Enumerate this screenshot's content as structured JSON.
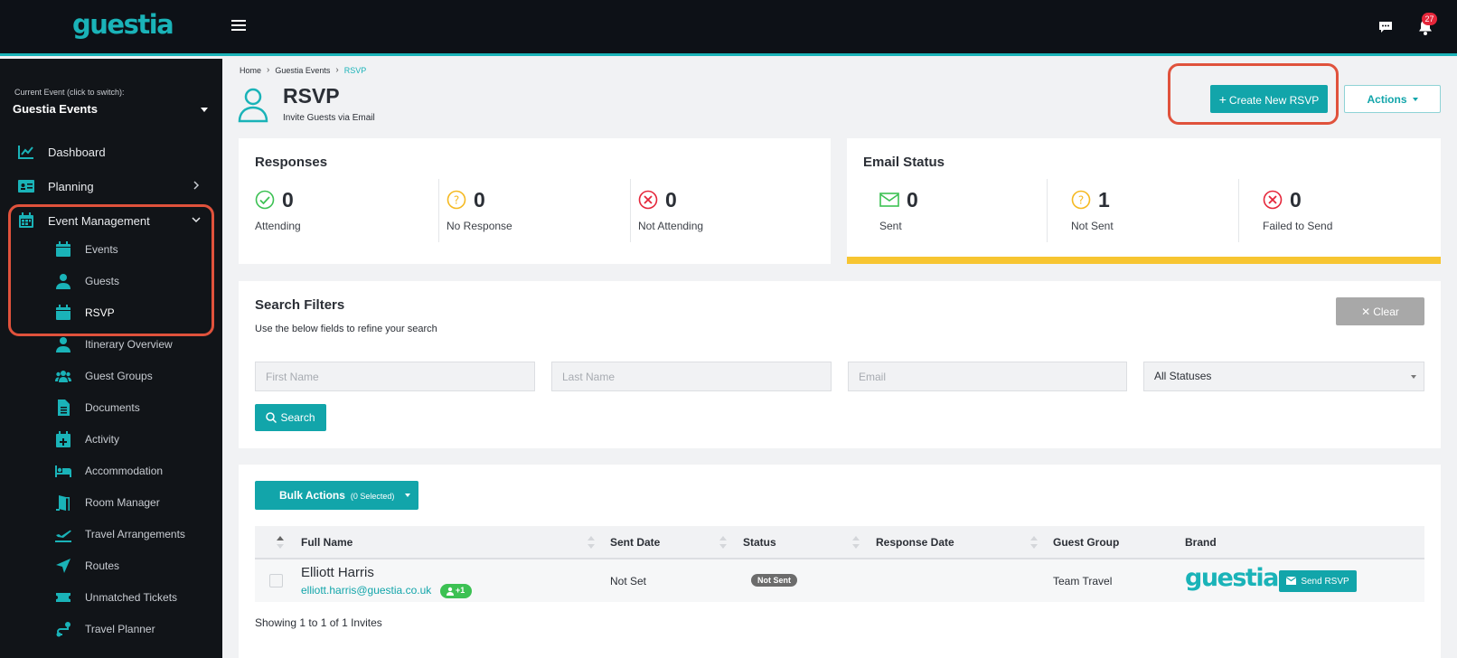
{
  "app": {
    "logo": "guestia",
    "notifications_count": "27"
  },
  "sidebar": {
    "current_event_label": "Current Event (click to switch):",
    "current_event": "Guestia Events",
    "items": [
      {
        "label": "Dashboard",
        "icon": "chart-line-icon"
      },
      {
        "label": "Planning",
        "icon": "id-card-icon"
      },
      {
        "label": "Event Management",
        "icon": "calendar-icon"
      }
    ],
    "subitems": [
      {
        "label": "Events",
        "icon": "calendar-icon"
      },
      {
        "label": "Guests",
        "icon": "user-icon"
      },
      {
        "label": "RSVP",
        "icon": "calendar-icon"
      },
      {
        "label": "Itinerary Overview",
        "icon": "user-icon"
      },
      {
        "label": "Guest Groups",
        "icon": "users-icon"
      },
      {
        "label": "Documents",
        "icon": "file-icon"
      },
      {
        "label": "Activity",
        "icon": "calendar-plus-icon"
      },
      {
        "label": "Accommodation",
        "icon": "bed-icon"
      },
      {
        "label": "Room Manager",
        "icon": "door-icon"
      },
      {
        "label": "Travel Arrangements",
        "icon": "plane-departure-icon"
      },
      {
        "label": "Routes",
        "icon": "location-arrow-icon"
      },
      {
        "label": "Unmatched Tickets",
        "icon": "ticket-icon"
      },
      {
        "label": "Travel Planner",
        "icon": "route-icon"
      }
    ]
  },
  "breadcrumb": [
    "Home",
    "Guestia Events",
    "RSVP"
  ],
  "page": {
    "title": "RSVP",
    "subtitle": "Invite Guests via Email",
    "create_button": "Create New RSVP",
    "actions_button": "Actions"
  },
  "responses": {
    "title": "Responses",
    "stats": [
      {
        "value": "0",
        "label": "Attending",
        "color": "#3cc153"
      },
      {
        "value": "0",
        "label": "No Response",
        "color": "#f5b921"
      },
      {
        "value": "0",
        "label": "Not Attending",
        "color": "#e5263a"
      }
    ]
  },
  "email_status": {
    "title": "Email Status",
    "bar_color": "#f7c531",
    "stats": [
      {
        "value": "0",
        "label": "Sent",
        "color": "#3cc153"
      },
      {
        "value": "1",
        "label": "Not Sent",
        "color": "#f5b921"
      },
      {
        "value": "0",
        "label": "Failed to Send",
        "color": "#e5263a"
      }
    ]
  },
  "filters": {
    "title": "Search Filters",
    "subtitle": "Use the below fields to refine your search",
    "clear_button": "Clear",
    "first_name_placeholder": "First Name",
    "last_name_placeholder": "Last Name",
    "email_placeholder": "Email",
    "status_selected": "All Statuses",
    "search_button": "Search"
  },
  "table": {
    "bulk_actions": "Bulk Actions",
    "bulk_selected": "(0 Selected)",
    "columns": [
      "Full Name",
      "Sent Date",
      "Status",
      "Response Date",
      "Guest Group",
      "Brand"
    ],
    "rows": [
      {
        "name": "Elliott Harris",
        "email": "elliott.harris@guestia.co.uk",
        "plus": "+1",
        "sent_date": "Not Set",
        "status": "Not Sent",
        "response_date": "",
        "guest_group": "Team Travel",
        "brand": "guestia",
        "action": "Send RSVP"
      }
    ],
    "showing": "Showing 1 to 1 of 1 Invites"
  },
  "colors": {
    "accent": "#12a5aa",
    "sidebar_bg": "#111418",
    "topbar_bg": "#0d1117",
    "highlight": "#e0523c"
  }
}
